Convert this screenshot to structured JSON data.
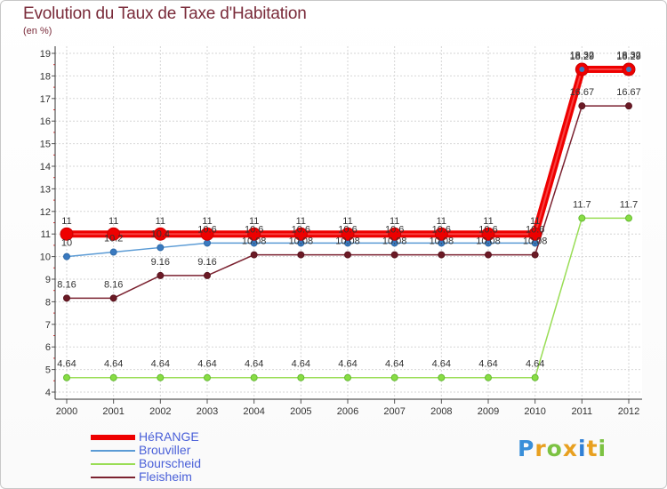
{
  "chart_data": {
    "type": "line",
    "title": "Evolution du Taux de Taxe d'Habitation",
    "subtitle": "(en %)",
    "x": [
      "2000",
      "2001",
      "2002",
      "2003",
      "2004",
      "2005",
      "2006",
      "2007",
      "2008",
      "2009",
      "2010",
      "2011",
      "2012"
    ],
    "ylim": [
      4,
      19
    ],
    "yticks": [
      4,
      5,
      6,
      7,
      8,
      9,
      10,
      11,
      12,
      13,
      14,
      15,
      16,
      17,
      18,
      19
    ],
    "grid": true,
    "series": [
      {
        "name": "HéRANGE",
        "color": "#ee0000",
        "values": [
          11,
          11,
          11,
          11,
          11,
          11,
          11,
          11,
          11,
          11,
          11,
          18.29,
          18.29
        ],
        "labels": [
          "11",
          "11",
          "11",
          "11",
          "11",
          "11",
          "11",
          "11",
          "11",
          "11",
          "11",
          "18.29",
          "18.29"
        ]
      },
      {
        "name": "Brouviller",
        "color": "#5b9bd5",
        "values": [
          10,
          10.2,
          10.4,
          10.6,
          10.6,
          10.6,
          10.6,
          10.6,
          10.6,
          10.6,
          10.6,
          18.32,
          18.32
        ],
        "labels": [
          "10",
          "10.2",
          "10.4",
          "10.6",
          "10.6",
          "10.6",
          "10.6",
          "10.6",
          "10.6",
          "10.6",
          "10.6",
          "18.32",
          "18.32"
        ]
      },
      {
        "name": "Bourscheid",
        "color": "#99dd55",
        "values": [
          4.64,
          4.64,
          4.64,
          4.64,
          4.64,
          4.64,
          4.64,
          4.64,
          4.64,
          4.64,
          4.64,
          11.7,
          11.7
        ],
        "labels": [
          "4.64",
          "4.64",
          "4.64",
          "4.64",
          "4.64",
          "4.64",
          "4.64",
          "4.64",
          "4.64",
          "4.64",
          "4.64",
          "11.7",
          "11.7"
        ]
      },
      {
        "name": "Fleisheim",
        "color": "#7b2230",
        "values": [
          8.16,
          8.16,
          9.16,
          9.16,
          10.08,
          10.08,
          10.08,
          10.08,
          10.08,
          10.08,
          10.08,
          16.67,
          16.67
        ],
        "labels": [
          "8.16",
          "8.16",
          "9.16",
          "9.16",
          "10.08",
          "10.08",
          "10.08",
          "10.08",
          "10.08",
          "10.08",
          "10.08",
          "16.67",
          "16.67"
        ]
      }
    ]
  },
  "logo": {
    "text": "Proxiti"
  }
}
